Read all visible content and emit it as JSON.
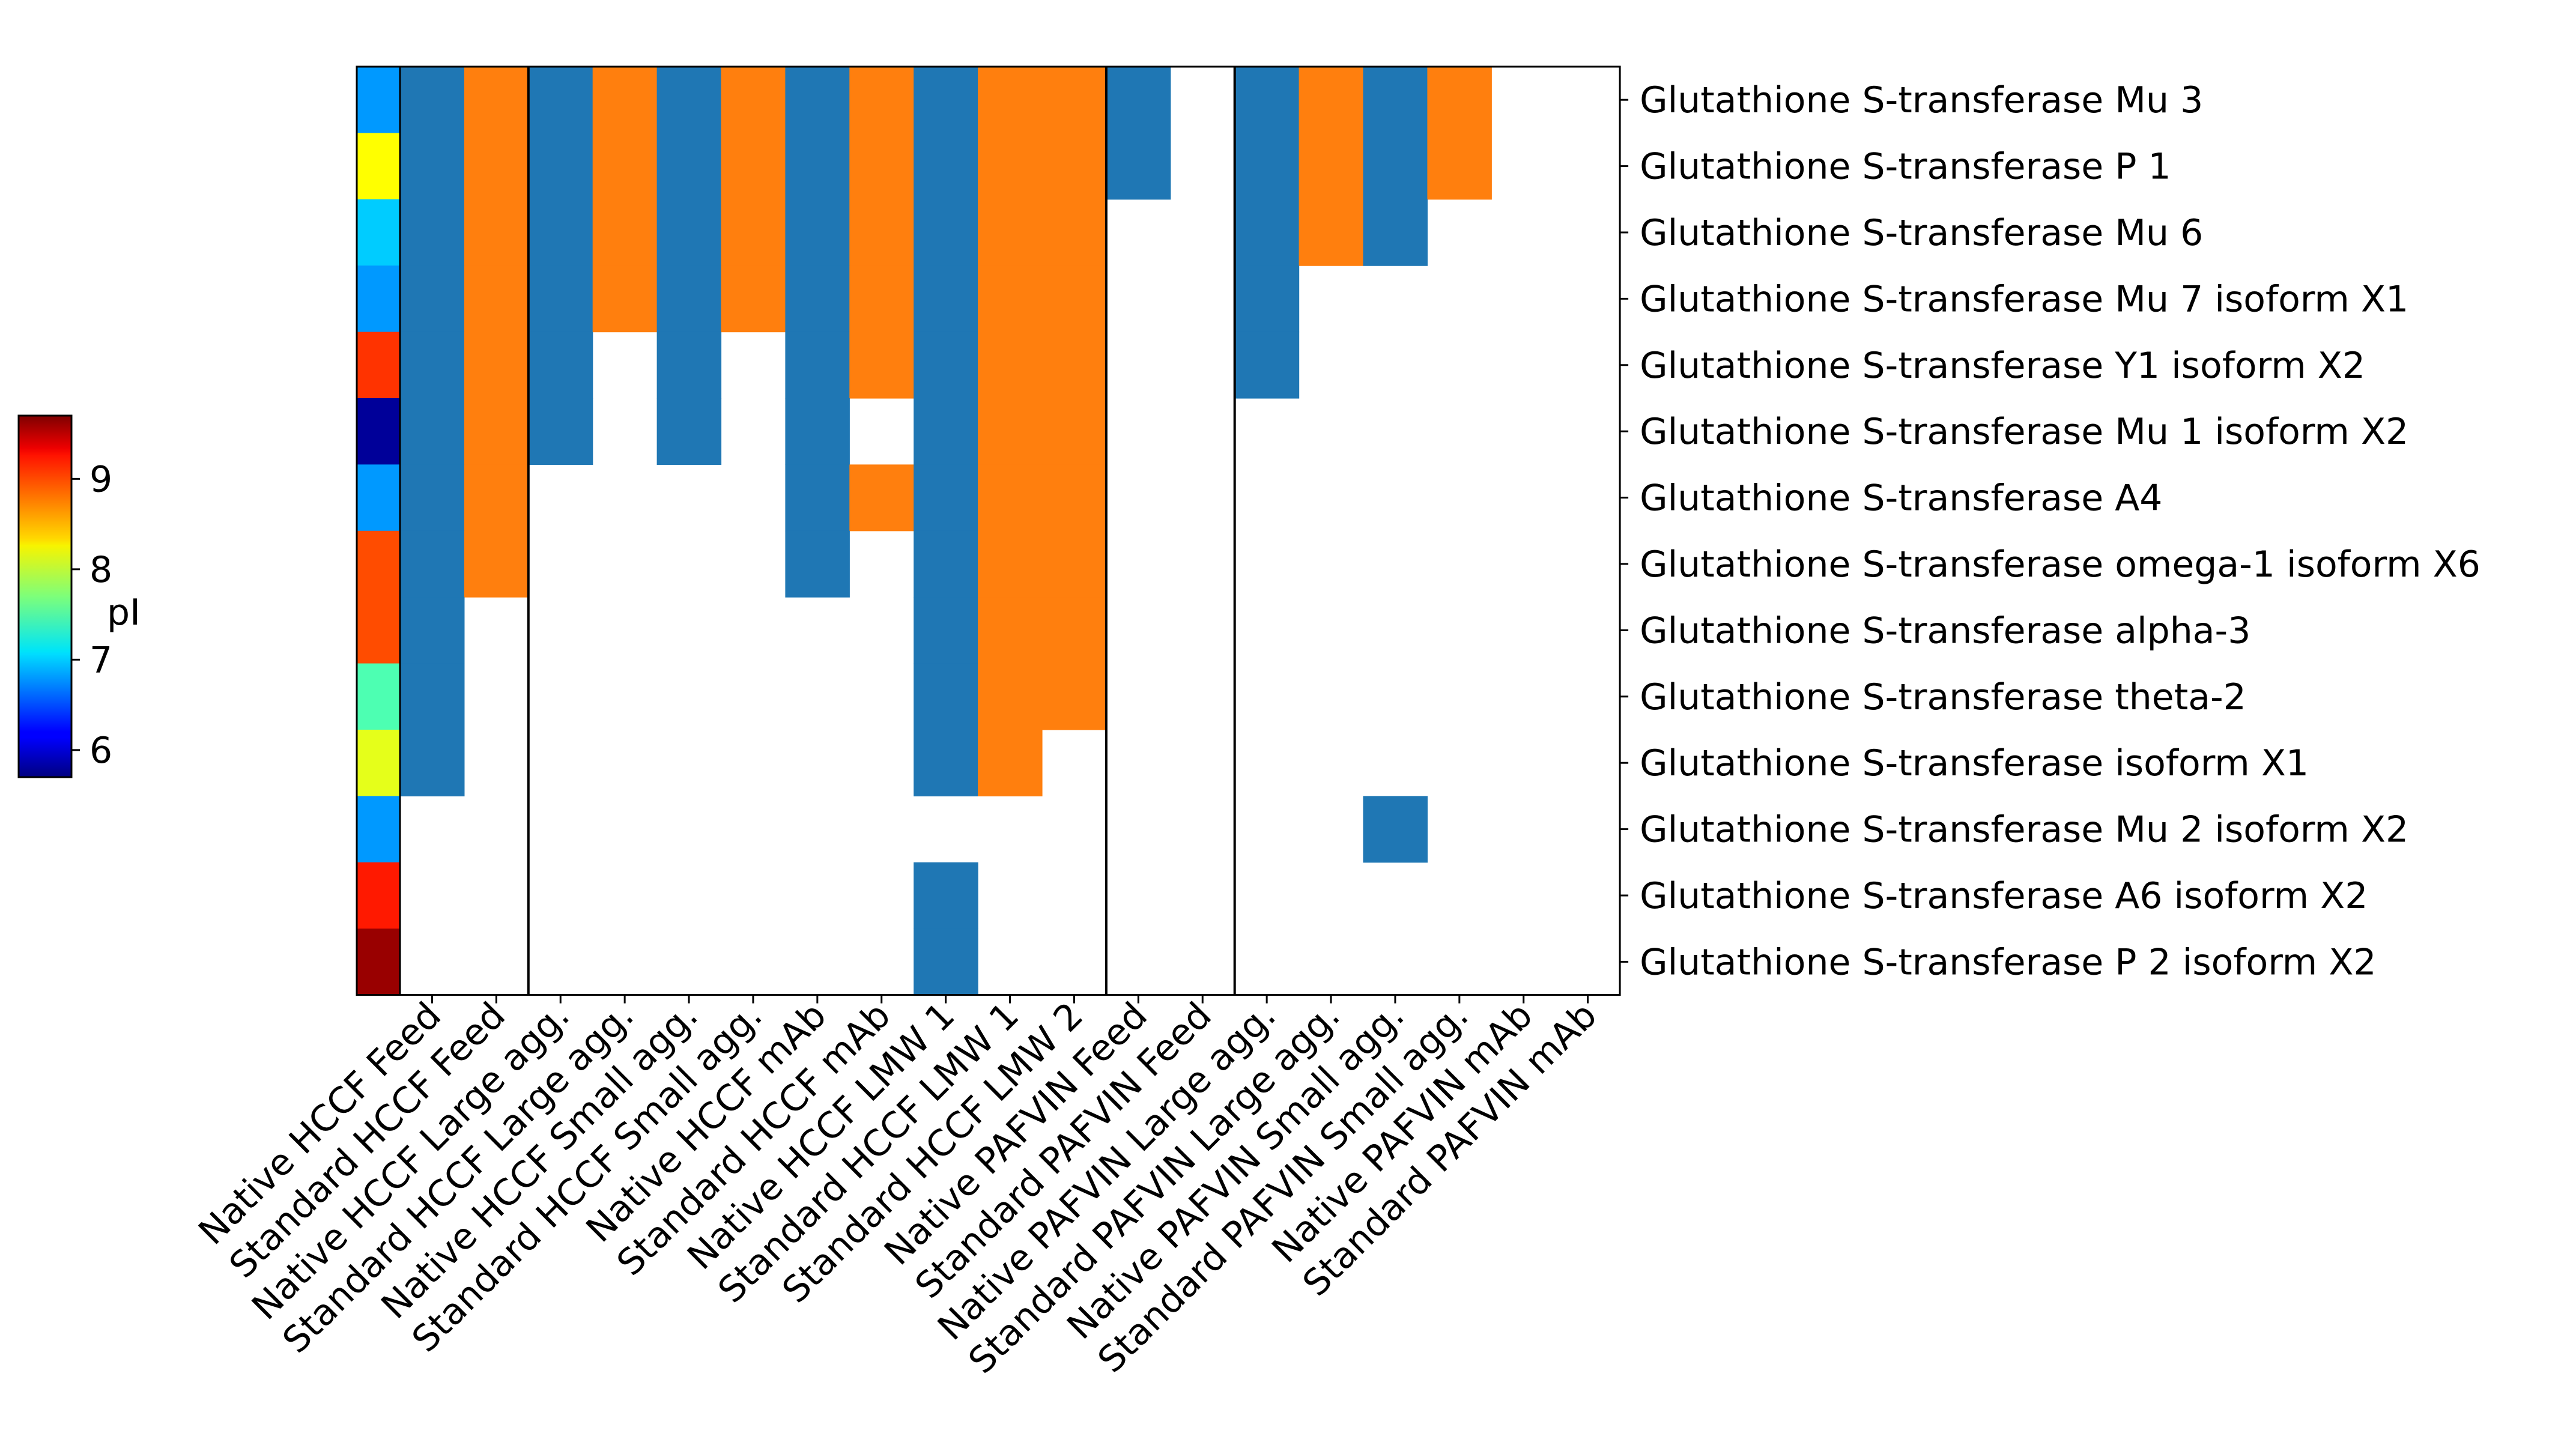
{
  "chart_data": {
    "type": "heatmap",
    "colorbar": {
      "label": "pI",
      "ticks": [
        6,
        7,
        8,
        9
      ],
      "range": [
        5.7,
        9.7
      ],
      "colormap": "jet"
    },
    "columns": [
      "Native HCCF Feed",
      "Standard HCCF Feed",
      "Native HCCF Large agg.",
      "Standard HCCF Large agg.",
      "Native HCCF Small agg.",
      "Standard HCCF Small agg.",
      "Native HCCF mAb",
      "Standard HCCF mAb",
      "Native HCCF LMW 1",
      "Standard HCCF LMW 1",
      "Standard HCCF LMW 2",
      "Native PAFVIN Feed",
      "Standard PAFVIN Feed",
      "Native PAFVIN Large agg.",
      "Standard PAFVIN Large agg.",
      "Native PAFVIN Small agg.",
      "Standard PAFVIN Small agg.",
      "Native PAFVIN mAb",
      "Standard PAFVIN mAb"
    ],
    "rows": [
      "Glutathione S-transferase Mu 3",
      "Glutathione S-transferase P 1",
      "Glutathione S-transferase Mu 6",
      "Glutathione S-transferase Mu 7 isoform X1",
      "Glutathione S-transferase Y1 isoform X2",
      "Glutathione S-transferase Mu 1 isoform X2",
      "Glutathione S-transferase A4",
      "Glutathione S-transferase omega-1 isoform X6",
      "Glutathione S-transferase alpha-3",
      "Glutathione S-transferase theta-2",
      "Glutathione S-transferase isoform X1",
      "Glutathione S-transferase Mu 2 isoform X2",
      "Glutathione S-transferase A6 isoform X2",
      "Glutathione S-transferase P 2 isoform X2"
    ],
    "row_pI": [
      6.8,
      8.2,
      7.0,
      6.8,
      9.0,
      5.8,
      6.8,
      8.9,
      8.9,
      7.5,
      8.1,
      6.8,
      9.1,
      9.6
    ],
    "matrix": [
      [
        1,
        2,
        1,
        2,
        1,
        2,
        1,
        2,
        1,
        2,
        2,
        1,
        0,
        1,
        2,
        1,
        2,
        0,
        0
      ],
      [
        1,
        2,
        1,
        2,
        1,
        2,
        1,
        2,
        1,
        2,
        2,
        1,
        0,
        1,
        2,
        1,
        2,
        0,
        0
      ],
      [
        1,
        2,
        1,
        2,
        1,
        2,
        1,
        2,
        1,
        2,
        2,
        0,
        0,
        1,
        2,
        1,
        0,
        0,
        0
      ],
      [
        1,
        2,
        1,
        2,
        1,
        2,
        1,
        2,
        1,
        2,
        2,
        0,
        0,
        1,
        0,
        0,
        0,
        0,
        0
      ],
      [
        1,
        2,
        1,
        0,
        1,
        0,
        1,
        2,
        1,
        2,
        2,
        0,
        0,
        1,
        0,
        0,
        0,
        0,
        0
      ],
      [
        1,
        2,
        1,
        0,
        1,
        0,
        1,
        0,
        1,
        2,
        2,
        0,
        0,
        0,
        0,
        0,
        0,
        0,
        0
      ],
      [
        1,
        2,
        0,
        0,
        0,
        0,
        1,
        2,
        1,
        2,
        2,
        0,
        0,
        0,
        0,
        0,
        0,
        0,
        0
      ],
      [
        1,
        2,
        0,
        0,
        0,
        0,
        1,
        0,
        1,
        2,
        2,
        0,
        0,
        0,
        0,
        0,
        0,
        0,
        0
      ],
      [
        1,
        0,
        0,
        0,
        0,
        0,
        0,
        0,
        1,
        2,
        2,
        0,
        0,
        0,
        0,
        0,
        0,
        0,
        0
      ],
      [
        1,
        0,
        0,
        0,
        0,
        0,
        0,
        0,
        1,
        2,
        2,
        0,
        0,
        0,
        0,
        0,
        0,
        0,
        0
      ],
      [
        1,
        0,
        0,
        0,
        0,
        0,
        0,
        0,
        1,
        2,
        0,
        0,
        0,
        0,
        0,
        0,
        0,
        0,
        0
      ],
      [
        0,
        0,
        0,
        0,
        0,
        0,
        0,
        0,
        0,
        0,
        0,
        0,
        0,
        0,
        0,
        1,
        0,
        0,
        0
      ],
      [
        0,
        0,
        0,
        0,
        0,
        0,
        0,
        0,
        1,
        0,
        0,
        0,
        0,
        0,
        0,
        0,
        0,
        0,
        0
      ],
      [
        0,
        0,
        0,
        0,
        0,
        0,
        0,
        0,
        1,
        0,
        0,
        0,
        0,
        0,
        0,
        0,
        0,
        0,
        0
      ]
    ],
    "cell_colors": {
      "0": "#ffffff",
      "1": "#1f77b4",
      "2": "#ff7f0e"
    },
    "group_separators_after_column": [
      1,
      10,
      12
    ]
  }
}
